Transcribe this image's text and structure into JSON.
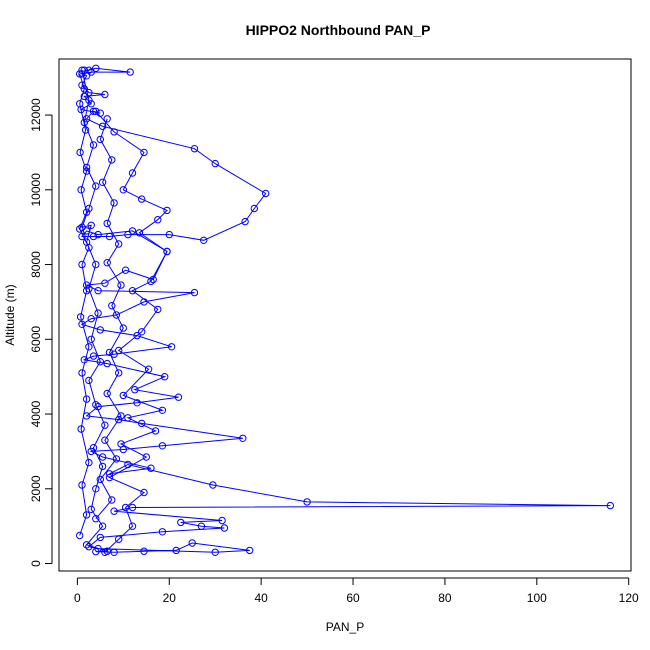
{
  "chart_data": {
    "type": "line",
    "title": "HIPPO2 Northbound PAN_P",
    "xlabel": "PAN_P",
    "ylabel": "Altitude (m)",
    "xlim": [
      -4,
      120.5
    ],
    "ylim": [
      -200,
      13500
    ],
    "xticks": [
      0,
      20,
      40,
      60,
      80,
      100,
      120
    ],
    "yticks": [
      0,
      2000,
      4000,
      6000,
      8000,
      10000,
      12000
    ],
    "series_color": "#0000ff",
    "marker": "open-circle",
    "series": [
      {
        "points": [
          [
            1.5,
            13200
          ],
          [
            2.5,
            13200
          ],
          [
            4.0,
            13250
          ],
          [
            11.5,
            13150
          ],
          [
            3.0,
            13150
          ],
          [
            1.0,
            13100
          ],
          [
            2.0,
            13050
          ],
          [
            1.0,
            12800
          ],
          [
            2.5,
            12600
          ],
          [
            6.0,
            12550
          ],
          [
            1.5,
            12500
          ],
          [
            3.0,
            12300
          ],
          [
            0.8,
            12150
          ],
          [
            5.0,
            12050
          ],
          [
            3.5,
            12100
          ],
          [
            2.0,
            11900
          ],
          [
            5.5,
            11700
          ],
          [
            25.5,
            11100
          ],
          [
            30.0,
            10700
          ],
          [
            41.0,
            9900
          ],
          [
            38.5,
            9500
          ],
          [
            36.5,
            9150
          ],
          [
            27.5,
            8650
          ],
          [
            20.0,
            8800
          ],
          [
            11.0,
            8800
          ],
          [
            7.0,
            8750
          ],
          [
            3.5,
            8750
          ],
          [
            1.0,
            8750
          ],
          [
            2.0,
            8900
          ],
          [
            4.5,
            8800
          ],
          [
            12.0,
            8900
          ],
          [
            19.5,
            8350
          ],
          [
            16.5,
            7600
          ],
          [
            10.5,
            7850
          ],
          [
            6.0,
            7500
          ],
          [
            2.0,
            7450
          ],
          [
            4.5,
            7300
          ],
          [
            25.5,
            7250
          ],
          [
            14.5,
            7000
          ],
          [
            8.5,
            6650
          ],
          [
            3.0,
            6550
          ],
          [
            1.0,
            6400
          ],
          [
            5.0,
            6250
          ],
          [
            13.0,
            6100
          ],
          [
            20.5,
            5800
          ],
          [
            8.0,
            5600
          ],
          [
            3.5,
            5550
          ],
          [
            1.5,
            5450
          ],
          [
            6.5,
            5350
          ],
          [
            19.0,
            5000
          ],
          [
            12.5,
            4650
          ],
          [
            22.0,
            4450
          ],
          [
            13.0,
            4300
          ],
          [
            4.5,
            4200
          ],
          [
            2.0,
            3950
          ],
          [
            9.0,
            3850
          ],
          [
            14.0,
            3750
          ],
          [
            36.0,
            3350
          ],
          [
            18.5,
            3150
          ],
          [
            10.0,
            3050
          ],
          [
            3.0,
            3000
          ],
          [
            5.5,
            2850
          ],
          [
            16.0,
            2550
          ],
          [
            7.0,
            2400
          ],
          [
            11.0,
            2650
          ],
          [
            29.5,
            2100
          ],
          [
            50.0,
            1650
          ],
          [
            116.0,
            1550
          ],
          [
            12.0,
            1500
          ],
          [
            8.0,
            1400
          ],
          [
            31.5,
            1150
          ],
          [
            22.5,
            1100
          ],
          [
            27.0,
            1000
          ],
          [
            32.0,
            950
          ],
          [
            18.5,
            850
          ],
          [
            5.0,
            700
          ],
          [
            2.5,
            450
          ],
          [
            4.5,
            400
          ],
          [
            30.0,
            300
          ],
          [
            37.5,
            350
          ],
          [
            25.0,
            550
          ],
          [
            21.5,
            350
          ],
          [
            14.5,
            330
          ],
          [
            8.0,
            300
          ],
          [
            4.0,
            320
          ],
          [
            6.5,
            330
          ],
          [
            2.0,
            500
          ],
          [
            5.5,
            1000
          ],
          [
            3.0,
            1450
          ],
          [
            4.0,
            2000
          ],
          [
            5.5,
            2600
          ],
          [
            3.5,
            3100
          ],
          [
            6.0,
            3700
          ],
          [
            4.0,
            4250
          ],
          [
            2.5,
            4900
          ],
          [
            5.0,
            5400
          ],
          [
            3.0,
            6000
          ],
          [
            4.5,
            6700
          ],
          [
            2.5,
            7350
          ],
          [
            4.0,
            8000
          ],
          [
            2.0,
            8600
          ],
          [
            3.0,
            9050
          ],
          [
            1.0,
            9000
          ],
          [
            2.5,
            9500
          ],
          [
            4.0,
            10100
          ],
          [
            2.0,
            10600
          ],
          [
            3.5,
            11200
          ],
          [
            1.5,
            11800
          ],
          [
            2.5,
            12400
          ],
          [
            1.0,
            13200
          ]
        ]
      },
      {
        "points": [
          [
            0.5,
            750
          ],
          [
            2.0,
            1300
          ],
          [
            1.0,
            2100
          ],
          [
            2.5,
            2700
          ],
          [
            0.8,
            3600
          ],
          [
            2.0,
            4400
          ],
          [
            1.0,
            5100
          ],
          [
            2.5,
            5800
          ],
          [
            0.7,
            6600
          ],
          [
            2.0,
            7300
          ],
          [
            1.0,
            8000
          ],
          [
            2.5,
            8450
          ],
          [
            0.5,
            8950
          ],
          [
            2.0,
            9400
          ],
          [
            0.8,
            10000
          ],
          [
            2.0,
            10500
          ],
          [
            0.6,
            11000
          ],
          [
            1.8,
            11600
          ],
          [
            0.5,
            12300
          ],
          [
            1.5,
            12700
          ],
          [
            0.5,
            13100
          ]
        ]
      },
      {
        "points": [
          [
            6.0,
            300
          ],
          [
            9.0,
            650
          ],
          [
            12.0,
            1000
          ],
          [
            10.5,
            1500
          ],
          [
            14.5,
            1900
          ],
          [
            7.0,
            2300
          ],
          [
            15.0,
            2850
          ],
          [
            9.5,
            3200
          ],
          [
            17.0,
            3550
          ],
          [
            11.0,
            3900
          ],
          [
            18.5,
            4100
          ],
          [
            10.0,
            4500
          ],
          [
            15.5,
            5200
          ],
          [
            9.0,
            5700
          ],
          [
            14.0,
            6200
          ],
          [
            17.5,
            6800
          ],
          [
            12.0,
            7300
          ],
          [
            16.0,
            7550
          ],
          [
            19.5,
            8350
          ],
          [
            13.5,
            8850
          ],
          [
            17.5,
            9200
          ],
          [
            19.5,
            9450
          ],
          [
            14.0,
            9750
          ],
          [
            10.0,
            10000
          ],
          [
            12.0,
            10450
          ],
          [
            14.5,
            11000
          ],
          [
            8.0,
            11550
          ],
          [
            4.0,
            12100
          ]
        ]
      },
      {
        "points": [
          [
            4.0,
            1200
          ],
          [
            7.5,
            1700
          ],
          [
            5.0,
            2250
          ],
          [
            8.5,
            2800
          ],
          [
            6.0,
            3300
          ],
          [
            9.5,
            3950
          ],
          [
            6.5,
            4550
          ],
          [
            9.0,
            5100
          ],
          [
            7.0,
            5650
          ],
          [
            10.0,
            6300
          ],
          [
            7.5,
            6900
          ],
          [
            9.5,
            7450
          ],
          [
            6.5,
            8050
          ],
          [
            9.0,
            8550
          ],
          [
            6.5,
            9100
          ],
          [
            8.0,
            9650
          ],
          [
            5.5,
            10200
          ],
          [
            7.5,
            10800
          ],
          [
            5.0,
            11350
          ],
          [
            6.5,
            11900
          ]
        ]
      }
    ]
  }
}
